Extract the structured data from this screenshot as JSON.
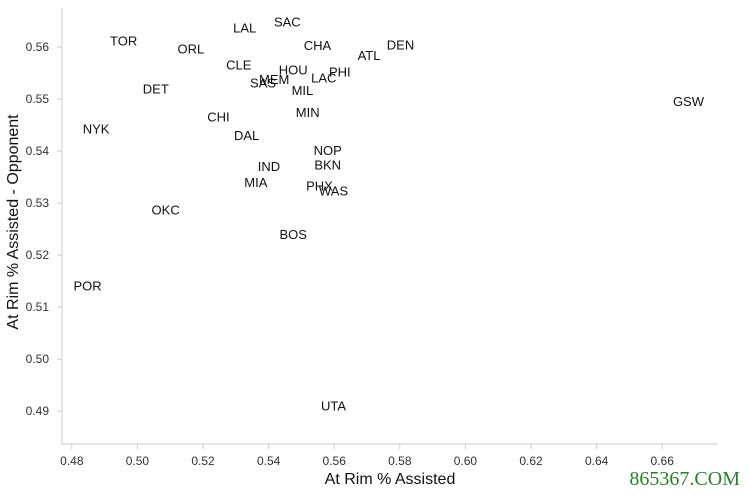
{
  "chart_data": {
    "type": "scatter",
    "title": "",
    "xlabel": "At Rim % Assisted",
    "ylabel": "At Rim % Assisted - Opponent",
    "xlim": [
      0.477,
      0.677
    ],
    "ylim": [
      0.4837,
      0.5675
    ],
    "xticks": [
      "0.48",
      "0.50",
      "0.52",
      "0.54",
      "0.56",
      "0.58",
      "0.60",
      "0.62",
      "0.64",
      "0.66"
    ],
    "yticks": [
      "0.49",
      "0.50",
      "0.51",
      "0.52",
      "0.53",
      "0.54",
      "0.55",
      "0.56"
    ],
    "x_tick_values": [
      0.48,
      0.5,
      0.52,
      0.54,
      0.56,
      0.58,
      0.6,
      0.62,
      0.64,
      0.66
    ],
    "y_tick_values": [
      0.49,
      0.5,
      0.51,
      0.52,
      0.53,
      0.54,
      0.55,
      0.56
    ],
    "points": [
      {
        "label": "SAC",
        "x": 0.5457,
        "y": 0.5649
      },
      {
        "label": "LAL",
        "x": 0.5327,
        "y": 0.5638
      },
      {
        "label": "TOR",
        "x": 0.4958,
        "y": 0.5613
      },
      {
        "label": "CHA",
        "x": 0.5549,
        "y": 0.5604
      },
      {
        "label": "DEN",
        "x": 0.5802,
        "y": 0.5605
      },
      {
        "label": "ORL",
        "x": 0.5163,
        "y": 0.5597
      },
      {
        "label": "ATL",
        "x": 0.5706,
        "y": 0.5585
      },
      {
        "label": "CLE",
        "x": 0.5309,
        "y": 0.5566
      },
      {
        "label": "HOU",
        "x": 0.5475,
        "y": 0.5557
      },
      {
        "label": "PHI",
        "x": 0.5617,
        "y": 0.5553
      },
      {
        "label": "MEM",
        "x": 0.5417,
        "y": 0.5539
      },
      {
        "label": "LAC",
        "x": 0.5568,
        "y": 0.5541
      },
      {
        "label": "SAS",
        "x": 0.5383,
        "y": 0.5532
      },
      {
        "label": "DET",
        "x": 0.5056,
        "y": 0.552
      },
      {
        "label": "MIL",
        "x": 0.5503,
        "y": 0.5517
      },
      {
        "label": "GSW",
        "x": 0.668,
        "y": 0.5496
      },
      {
        "label": "MIN",
        "x": 0.5519,
        "y": 0.5475
      },
      {
        "label": "CHI",
        "x": 0.5247,
        "y": 0.5466
      },
      {
        "label": "NYK",
        "x": 0.4874,
        "y": 0.5443
      },
      {
        "label": "DAL",
        "x": 0.5333,
        "y": 0.5431
      },
      {
        "label": "NOP",
        "x": 0.558,
        "y": 0.5402
      },
      {
        "label": "IND",
        "x": 0.5401,
        "y": 0.5371
      },
      {
        "label": "BKN",
        "x": 0.558,
        "y": 0.5374
      },
      {
        "label": "MIA",
        "x": 0.5361,
        "y": 0.5341
      },
      {
        "label": "PHX",
        "x": 0.5555,
        "y": 0.5334
      },
      {
        "label": "WAS",
        "x": 0.5598,
        "y": 0.5324
      },
      {
        "label": "OKC",
        "x": 0.5086,
        "y": 0.5288
      },
      {
        "label": "BOS",
        "x": 0.5475,
        "y": 0.5241
      },
      {
        "label": "POR",
        "x": 0.4848,
        "y": 0.5142
      },
      {
        "label": "UTA",
        "x": 0.5598,
        "y": 0.4911
      }
    ]
  },
  "watermark_text": "865367.COM",
  "colors": {
    "text": "#111111",
    "axis": "#cccccc",
    "watermark": "#2e7d2e"
  }
}
